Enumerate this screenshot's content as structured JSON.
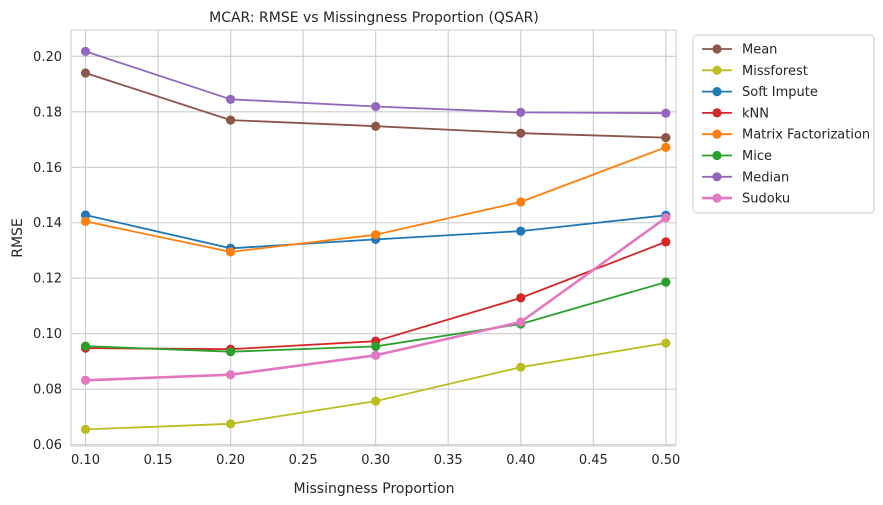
{
  "chart_data": {
    "type": "line",
    "title": "MCAR: RMSE vs Missingness Proportion (QSAR)",
    "xlabel": "Missingness Proportion",
    "ylabel": "RMSE",
    "x": [
      0.1,
      0.2,
      0.3,
      0.4,
      0.5
    ],
    "xlim": [
      0.09,
      0.507
    ],
    "ylim": [
      0.0595,
      0.2095
    ],
    "xticks": [
      "0.10",
      "0.15",
      "0.20",
      "0.25",
      "0.30",
      "0.35",
      "0.40",
      "0.45",
      "0.50"
    ],
    "yticks": [
      "0.06",
      "0.08",
      "0.10",
      "0.12",
      "0.14",
      "0.16",
      "0.18",
      "0.20"
    ],
    "grid": true,
    "legend_position": "outside-right",
    "series": [
      {
        "name": "Mean",
        "color": "#8c564b",
        "values": [
          0.194,
          0.177,
          0.1748,
          0.1723,
          0.1707
        ]
      },
      {
        "name": "Missforest",
        "color": "#bcbd22",
        "values": [
          0.0655,
          0.0675,
          0.0757,
          0.0879,
          0.0966
        ]
      },
      {
        "name": "Soft Impute",
        "color": "#1f77b4",
        "values": [
          0.1428,
          0.1308,
          0.134,
          0.137,
          0.1427
        ]
      },
      {
        "name": "kNN",
        "color": "#d62728",
        "values": [
          0.0948,
          0.0944,
          0.0973,
          0.1129,
          0.1331
        ]
      },
      {
        "name": "Matrix Factorization",
        "color": "#ff7f0e",
        "values": [
          0.1405,
          0.1295,
          0.1357,
          0.1475,
          0.1672
        ]
      },
      {
        "name": "Mice",
        "color": "#2ca02c",
        "values": [
          0.0955,
          0.0935,
          0.0954,
          0.1035,
          0.1186
        ]
      },
      {
        "name": "Median",
        "color": "#9467bd",
        "values": [
          0.2018,
          0.1845,
          0.1819,
          0.1798,
          0.1795
        ]
      },
      {
        "name": "Sudoku",
        "color": "#e377c2",
        "values": [
          0.0832,
          0.0852,
          0.0922,
          0.1042,
          0.1418
        ]
      }
    ]
  }
}
